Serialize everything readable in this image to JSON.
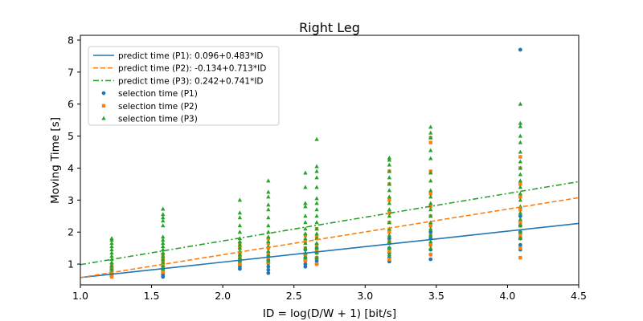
{
  "chart_data": {
    "type": "scatter",
    "title": "Right Leg",
    "xlabel": "ID = log(D/W + 1) [bit/s]",
    "ylabel": "Moving Time [s]",
    "xlim": [
      1.0,
      4.5
    ],
    "ylim": [
      0.35,
      8.15
    ],
    "xticks": [
      "1.0",
      "1.5",
      "2.0",
      "2.5",
      "3.0",
      "3.5",
      "4.0",
      "4.5"
    ],
    "yticks": [
      "1",
      "2",
      "3",
      "4",
      "5",
      "6",
      "7",
      "8"
    ],
    "grid": false,
    "legend_position": "top-left",
    "lines": [
      {
        "name": "predict time (P1): 0.096+0.483*ID",
        "intercept": 0.096,
        "slope": 0.483,
        "color": "#1f77b4",
        "style": "solid"
      },
      {
        "name": "predict time (P2): -0.134+0.713*ID",
        "intercept": -0.134,
        "slope": 0.713,
        "color": "#ff7f0e",
        "style": "dashed"
      },
      {
        "name": "predict time (P3): 0.242+0.741*ID",
        "intercept": 0.242,
        "slope": 0.741,
        "color": "#2ca02c",
        "style": "dashdot"
      }
    ],
    "series": [
      {
        "name": "selection time (P1)",
        "marker": "circle",
        "color": "#1f77b4",
        "points": [
          [
            1.22,
            0.62
          ],
          [
            1.22,
            0.68
          ],
          [
            1.22,
            0.72
          ],
          [
            1.22,
            0.76
          ],
          [
            1.22,
            0.8
          ],
          [
            1.22,
            0.85
          ],
          [
            1.22,
            0.9
          ],
          [
            1.58,
            0.6
          ],
          [
            1.58,
            0.66
          ],
          [
            1.58,
            0.72
          ],
          [
            1.58,
            0.78
          ],
          [
            1.58,
            0.85
          ],
          [
            1.58,
            0.92
          ],
          [
            1.58,
            1.0
          ],
          [
            2.12,
            0.85
          ],
          [
            2.12,
            0.92
          ],
          [
            2.12,
            1.0
          ],
          [
            2.12,
            1.08
          ],
          [
            2.12,
            1.15
          ],
          [
            2.12,
            1.25
          ],
          [
            2.32,
            0.72
          ],
          [
            2.32,
            0.82
          ],
          [
            2.32,
            0.92
          ],
          [
            2.32,
            1.02
          ],
          [
            2.32,
            1.12
          ],
          [
            2.32,
            1.25
          ],
          [
            2.58,
            0.92
          ],
          [
            2.58,
            1.0
          ],
          [
            2.58,
            1.1
          ],
          [
            2.58,
            1.2
          ],
          [
            2.58,
            1.3
          ],
          [
            2.58,
            1.45
          ],
          [
            2.66,
            1.0
          ],
          [
            2.66,
            1.1
          ],
          [
            2.66,
            1.2
          ],
          [
            2.66,
            1.35
          ],
          [
            2.66,
            1.5
          ],
          [
            3.17,
            1.08
          ],
          [
            3.17,
            1.2
          ],
          [
            3.17,
            1.35
          ],
          [
            3.17,
            1.5
          ],
          [
            3.17,
            1.65
          ],
          [
            3.17,
            1.8
          ],
          [
            3.46,
            1.15
          ],
          [
            3.46,
            1.3
          ],
          [
            3.46,
            1.45
          ],
          [
            3.46,
            1.6
          ],
          [
            3.46,
            1.8
          ],
          [
            3.46,
            2.0
          ],
          [
            4.09,
            1.45
          ],
          [
            4.09,
            1.6
          ],
          [
            4.09,
            1.8
          ],
          [
            4.09,
            2.0
          ],
          [
            4.09,
            2.2
          ],
          [
            4.09,
            2.5
          ],
          [
            4.09,
            7.7
          ]
        ]
      },
      {
        "name": "selection time (P2)",
        "marker": "square",
        "color": "#ff7f0e",
        "points": [
          [
            1.22,
            0.6
          ],
          [
            1.22,
            0.65
          ],
          [
            1.22,
            0.7
          ],
          [
            1.22,
            0.78
          ],
          [
            1.22,
            0.85
          ],
          [
            1.22,
            0.95
          ],
          [
            1.58,
            0.75
          ],
          [
            1.58,
            0.85
          ],
          [
            1.58,
            0.95
          ],
          [
            1.58,
            1.05
          ],
          [
            1.58,
            1.15
          ],
          [
            1.58,
            1.3
          ],
          [
            2.12,
            1.0
          ],
          [
            2.12,
            1.1
          ],
          [
            2.12,
            1.2
          ],
          [
            2.12,
            1.35
          ],
          [
            2.12,
            1.5
          ],
          [
            2.12,
            1.65
          ],
          [
            2.32,
            1.05
          ],
          [
            2.32,
            1.2
          ],
          [
            2.32,
            1.35
          ],
          [
            2.32,
            1.5
          ],
          [
            2.32,
            1.65
          ],
          [
            2.32,
            1.8
          ],
          [
            2.58,
            1.1
          ],
          [
            2.58,
            1.3
          ],
          [
            2.58,
            1.5
          ],
          [
            2.58,
            1.7
          ],
          [
            2.58,
            1.9
          ],
          [
            2.66,
            1.0
          ],
          [
            2.66,
            1.2
          ],
          [
            2.66,
            1.4
          ],
          [
            2.66,
            1.6
          ],
          [
            2.66,
            1.85
          ],
          [
            2.66,
            2.1
          ],
          [
            3.17,
            1.15
          ],
          [
            3.17,
            1.4
          ],
          [
            3.17,
            1.7
          ],
          [
            3.17,
            2.0
          ],
          [
            3.17,
            2.3
          ],
          [
            3.17,
            2.6
          ],
          [
            3.17,
            3.0
          ],
          [
            3.17,
            3.5
          ],
          [
            3.17,
            3.9
          ],
          [
            3.46,
            1.3
          ],
          [
            3.46,
            1.6
          ],
          [
            3.46,
            1.9
          ],
          [
            3.46,
            2.2
          ],
          [
            3.46,
            2.5
          ],
          [
            3.46,
            2.8
          ],
          [
            3.46,
            3.2
          ],
          [
            3.46,
            3.9
          ],
          [
            3.46,
            4.8
          ],
          [
            3.46,
            4.95
          ],
          [
            4.09,
            1.2
          ],
          [
            4.09,
            1.5
          ],
          [
            4.09,
            1.9
          ],
          [
            4.09,
            2.3
          ],
          [
            4.09,
            2.7
          ],
          [
            4.09,
            3.1
          ],
          [
            4.09,
            3.5
          ],
          [
            4.09,
            4.0
          ],
          [
            4.09,
            4.35
          ]
        ]
      },
      {
        "name": "selection time (P3)",
        "marker": "triangle",
        "color": "#2ca02c",
        "points": [
          [
            1.22,
            0.75
          ],
          [
            1.22,
            0.85
          ],
          [
            1.22,
            0.95
          ],
          [
            1.22,
            1.05
          ],
          [
            1.22,
            1.15
          ],
          [
            1.22,
            1.25
          ],
          [
            1.22,
            1.35
          ],
          [
            1.22,
            1.45
          ],
          [
            1.22,
            1.55
          ],
          [
            1.22,
            1.65
          ],
          [
            1.22,
            1.75
          ],
          [
            1.22,
            1.8
          ],
          [
            1.58,
            0.85
          ],
          [
            1.58,
            0.95
          ],
          [
            1.58,
            1.05
          ],
          [
            1.58,
            1.15
          ],
          [
            1.58,
            1.25
          ],
          [
            1.58,
            1.35
          ],
          [
            1.58,
            1.45
          ],
          [
            1.58,
            1.55
          ],
          [
            1.58,
            1.65
          ],
          [
            1.58,
            1.75
          ],
          [
            1.58,
            1.85
          ],
          [
            1.58,
            2.2
          ],
          [
            1.58,
            2.35
          ],
          [
            1.58,
            2.45
          ],
          [
            1.58,
            2.55
          ],
          [
            1.58,
            2.72
          ],
          [
            2.12,
            1.1
          ],
          [
            2.12,
            1.2
          ],
          [
            2.12,
            1.3
          ],
          [
            2.12,
            1.4
          ],
          [
            2.12,
            1.5
          ],
          [
            2.12,
            1.6
          ],
          [
            2.12,
            1.7
          ],
          [
            2.12,
            1.8
          ],
          [
            2.12,
            2.0
          ],
          [
            2.12,
            2.2
          ],
          [
            2.12,
            2.45
          ],
          [
            2.12,
            2.6
          ],
          [
            2.12,
            3.0
          ],
          [
            2.32,
            1.1
          ],
          [
            2.32,
            1.25
          ],
          [
            2.32,
            1.4
          ],
          [
            2.32,
            1.55
          ],
          [
            2.32,
            1.7
          ],
          [
            2.32,
            1.85
          ],
          [
            2.32,
            2.0
          ],
          [
            2.32,
            2.2
          ],
          [
            2.32,
            2.45
          ],
          [
            2.32,
            2.7
          ],
          [
            2.32,
            2.85
          ],
          [
            2.32,
            3.1
          ],
          [
            2.32,
            3.25
          ],
          [
            2.32,
            3.6
          ],
          [
            2.58,
            1.2
          ],
          [
            2.58,
            1.35
          ],
          [
            2.58,
            1.5
          ],
          [
            2.58,
            1.65
          ],
          [
            2.58,
            1.8
          ],
          [
            2.58,
            1.95
          ],
          [
            2.58,
            2.1
          ],
          [
            2.58,
            2.3
          ],
          [
            2.58,
            2.5
          ],
          [
            2.58,
            2.8
          ],
          [
            2.58,
            2.9
          ],
          [
            2.58,
            3.4
          ],
          [
            2.58,
            3.85
          ],
          [
            2.66,
            1.2
          ],
          [
            2.66,
            1.35
          ],
          [
            2.66,
            1.5
          ],
          [
            2.66,
            1.65
          ],
          [
            2.66,
            1.8
          ],
          [
            2.66,
            1.95
          ],
          [
            2.66,
            2.1
          ],
          [
            2.66,
            2.3
          ],
          [
            2.66,
            2.5
          ],
          [
            2.66,
            2.7
          ],
          [
            2.66,
            2.9
          ],
          [
            2.66,
            3.05
          ],
          [
            2.66,
            3.4
          ],
          [
            2.66,
            3.7
          ],
          [
            2.66,
            3.9
          ],
          [
            2.66,
            4.05
          ],
          [
            2.66,
            4.9
          ],
          [
            3.17,
            1.3
          ],
          [
            3.17,
            1.5
          ],
          [
            3.17,
            1.7
          ],
          [
            3.17,
            1.9
          ],
          [
            3.17,
            2.1
          ],
          [
            3.17,
            2.3
          ],
          [
            3.17,
            2.5
          ],
          [
            3.17,
            2.7
          ],
          [
            3.17,
            2.9
          ],
          [
            3.17,
            3.1
          ],
          [
            3.17,
            3.3
          ],
          [
            3.17,
            3.5
          ],
          [
            3.17,
            3.7
          ],
          [
            3.17,
            3.9
          ],
          [
            3.17,
            4.1
          ],
          [
            3.17,
            4.25
          ],
          [
            3.17,
            4.32
          ],
          [
            3.46,
            1.5
          ],
          [
            3.46,
            1.7
          ],
          [
            3.46,
            1.9
          ],
          [
            3.46,
            2.1
          ],
          [
            3.46,
            2.3
          ],
          [
            3.46,
            2.5
          ],
          [
            3.46,
            2.7
          ],
          [
            3.46,
            2.9
          ],
          [
            3.46,
            3.1
          ],
          [
            3.46,
            3.3
          ],
          [
            3.46,
            3.6
          ],
          [
            3.46,
            3.85
          ],
          [
            3.46,
            4.3
          ],
          [
            3.46,
            4.55
          ],
          [
            3.46,
            4.95
          ],
          [
            3.46,
            5.1
          ],
          [
            3.46,
            5.28
          ],
          [
            4.09,
            1.8
          ],
          [
            4.09,
            2.0
          ],
          [
            4.09,
            2.2
          ],
          [
            4.09,
            2.4
          ],
          [
            4.09,
            2.6
          ],
          [
            4.09,
            2.8
          ],
          [
            4.09,
            3.0
          ],
          [
            4.09,
            3.2
          ],
          [
            4.09,
            3.4
          ],
          [
            4.09,
            3.6
          ],
          [
            4.09,
            3.8
          ],
          [
            4.09,
            4.0
          ],
          [
            4.09,
            4.2
          ],
          [
            4.09,
            4.5
          ],
          [
            4.09,
            4.8
          ],
          [
            4.09,
            5.0
          ],
          [
            4.09,
            5.3
          ],
          [
            4.09,
            5.4
          ],
          [
            4.09,
            6.0
          ]
        ]
      }
    ]
  }
}
